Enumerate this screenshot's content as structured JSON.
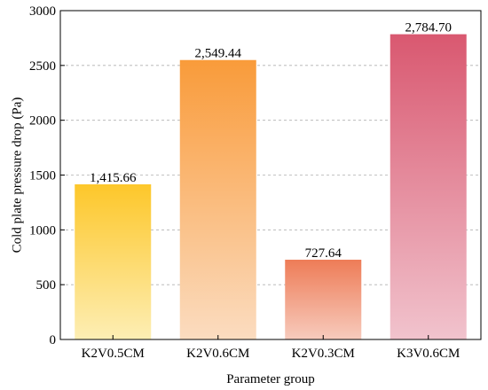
{
  "chart_data": {
    "type": "bar",
    "title": "",
    "xlabel": "Parameter group",
    "ylabel": "Cold plate pressure drop (Pa)",
    "categories": [
      "K2V0.5CM",
      "K2V0.6CM",
      "K2V0.3CM",
      "K3V0.6CM"
    ],
    "values": [
      1415.66,
      2549.44,
      727.64,
      2784.7
    ],
    "value_labels": [
      "1,415.66",
      "2,549.44",
      "727.64",
      "2,784.70"
    ],
    "ylim": [
      0,
      3000
    ],
    "yticks": [
      0,
      500,
      1000,
      1500,
      2000,
      2500,
      3000
    ],
    "grid": "horizontal dashed",
    "legend": "none",
    "bar_colors": [
      {
        "top": "#fdc72a",
        "bottom": "#fdeeb4"
      },
      {
        "top": "#f99b3a",
        "bottom": "#fbdcc0"
      },
      {
        "top": "#ee7c57",
        "bottom": "#f7cbbd"
      },
      {
        "top": "#d95870",
        "bottom": "#f1c3cd"
      }
    ]
  }
}
